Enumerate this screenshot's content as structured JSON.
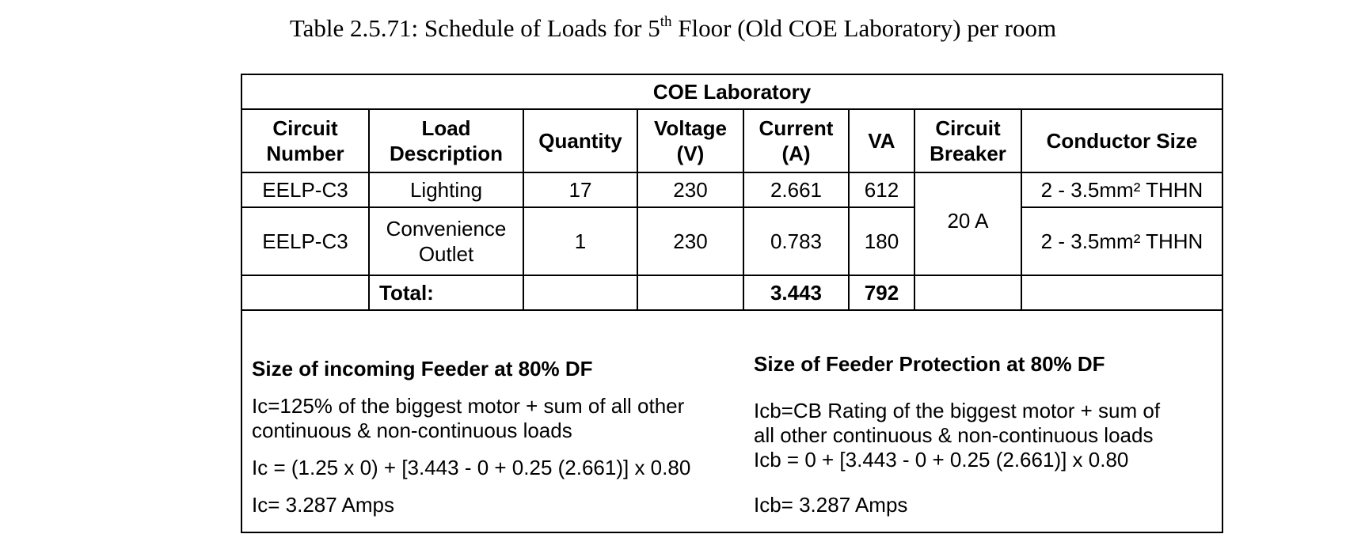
{
  "caption": {
    "prefix": "Table 2.5.71: Schedule of Loads for 5",
    "superscript": "th",
    "suffix": " Floor (Old COE Laboratory) per room"
  },
  "table": {
    "title": "COE Laboratory",
    "headers": {
      "circuit_number": "Circuit Number",
      "load_description": "Load Description",
      "quantity": "Quantity",
      "voltage": "Voltage (V)",
      "current": "Current (A)",
      "va": "VA",
      "circuit_breaker": "Circuit Breaker",
      "conductor_size": "Conductor Size"
    },
    "rows": [
      {
        "circuit_number": "EELP-C3",
        "load_description": "Lighting",
        "quantity": "17",
        "voltage": "230",
        "current": "2.661",
        "va": "612",
        "conductor_size": "2 - 3.5mm² THHN"
      },
      {
        "circuit_number": "EELP-C3",
        "load_description": "Convenience Outlet",
        "quantity": "1",
        "voltage": "230",
        "current": "0.783",
        "va": "180",
        "conductor_size": "2 - 3.5mm² THHN"
      }
    ],
    "circuit_breaker_value": "20 A",
    "total": {
      "label": "Total:",
      "current": "3.443",
      "va": "792"
    }
  },
  "feeder_left": {
    "title": "Size of incoming Feeder at 80% DF",
    "line1": "Ic=125% of the biggest motor + sum of all other",
    "line2": "continuous & non-continuous  loads",
    "formula": "Ic = (1.25 x 0) + [3.443 - 0 + 0.25 (2.661)] x 0.80",
    "result": "Ic= 3.287 Amps"
  },
  "feeder_right": {
    "title": "Size of Feeder Protection at 80% DF",
    "line1": "Icb=CB Rating of the biggest motor + sum of",
    "line2": "all other continuous & non-continuous loads",
    "formula": "Icb = 0 + [3.443 - 0 + 0.25 (2.661)] x 0.80",
    "result": "Icb= 3.287 Amps"
  }
}
